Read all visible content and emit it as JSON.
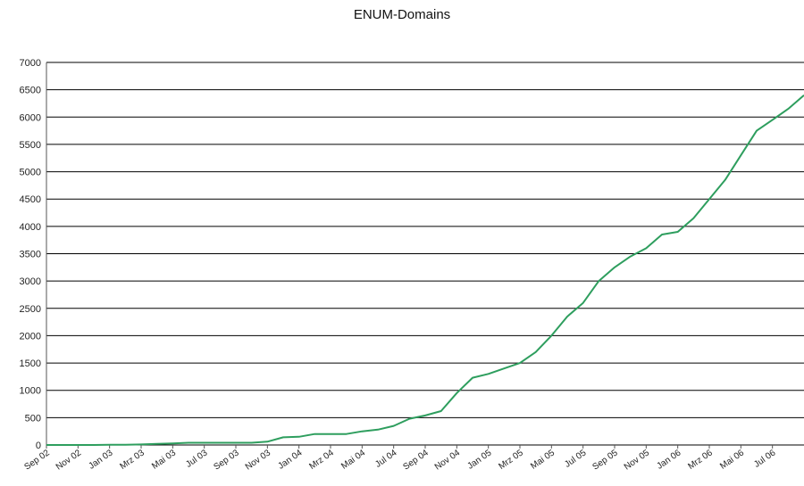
{
  "chart_data": {
    "type": "line",
    "title": "ENUM-Domains",
    "xlabel": "",
    "ylabel": "",
    "ylim": [
      0,
      7000
    ],
    "yticks": [
      0,
      500,
      1000,
      1500,
      2000,
      2500,
      3000,
      3500,
      4000,
      4500,
      5000,
      5500,
      6000,
      6500,
      7000
    ],
    "x_tick_labels": [
      "Sep 02",
      "Nov 02",
      "Jan 03",
      "Mrz 03",
      "Mai 03",
      "Jul 03",
      "Sep 03",
      "Nov 03",
      "Jan 04",
      "Mrz 04",
      "Mai 04",
      "Jul 04",
      "Sep 04",
      "Nov 04",
      "Jan 05",
      "Mrz 05",
      "Mai 05",
      "Jul 05",
      "Sep 05",
      "Nov 05",
      "Jan 06",
      "Mrz 06",
      "Mai 06",
      "Jul 06"
    ],
    "grid": "horizontal",
    "legend": "none",
    "series": [
      {
        "color": "#2e9e5e",
        "values": [
          0,
          0,
          0,
          0,
          5,
          5,
          10,
          20,
          30,
          40,
          40,
          40,
          40,
          40,
          60,
          140,
          150,
          200,
          200,
          200,
          250,
          280,
          350,
          480,
          540,
          620,
          950,
          1230,
          1300,
          1400,
          1500,
          1700,
          2000,
          2350,
          2600,
          3000,
          3250,
          3450,
          3600,
          3850,
          3900,
          4150,
          4500,
          4850,
          5300,
          5750,
          5950,
          6150,
          6400
        ]
      }
    ]
  }
}
